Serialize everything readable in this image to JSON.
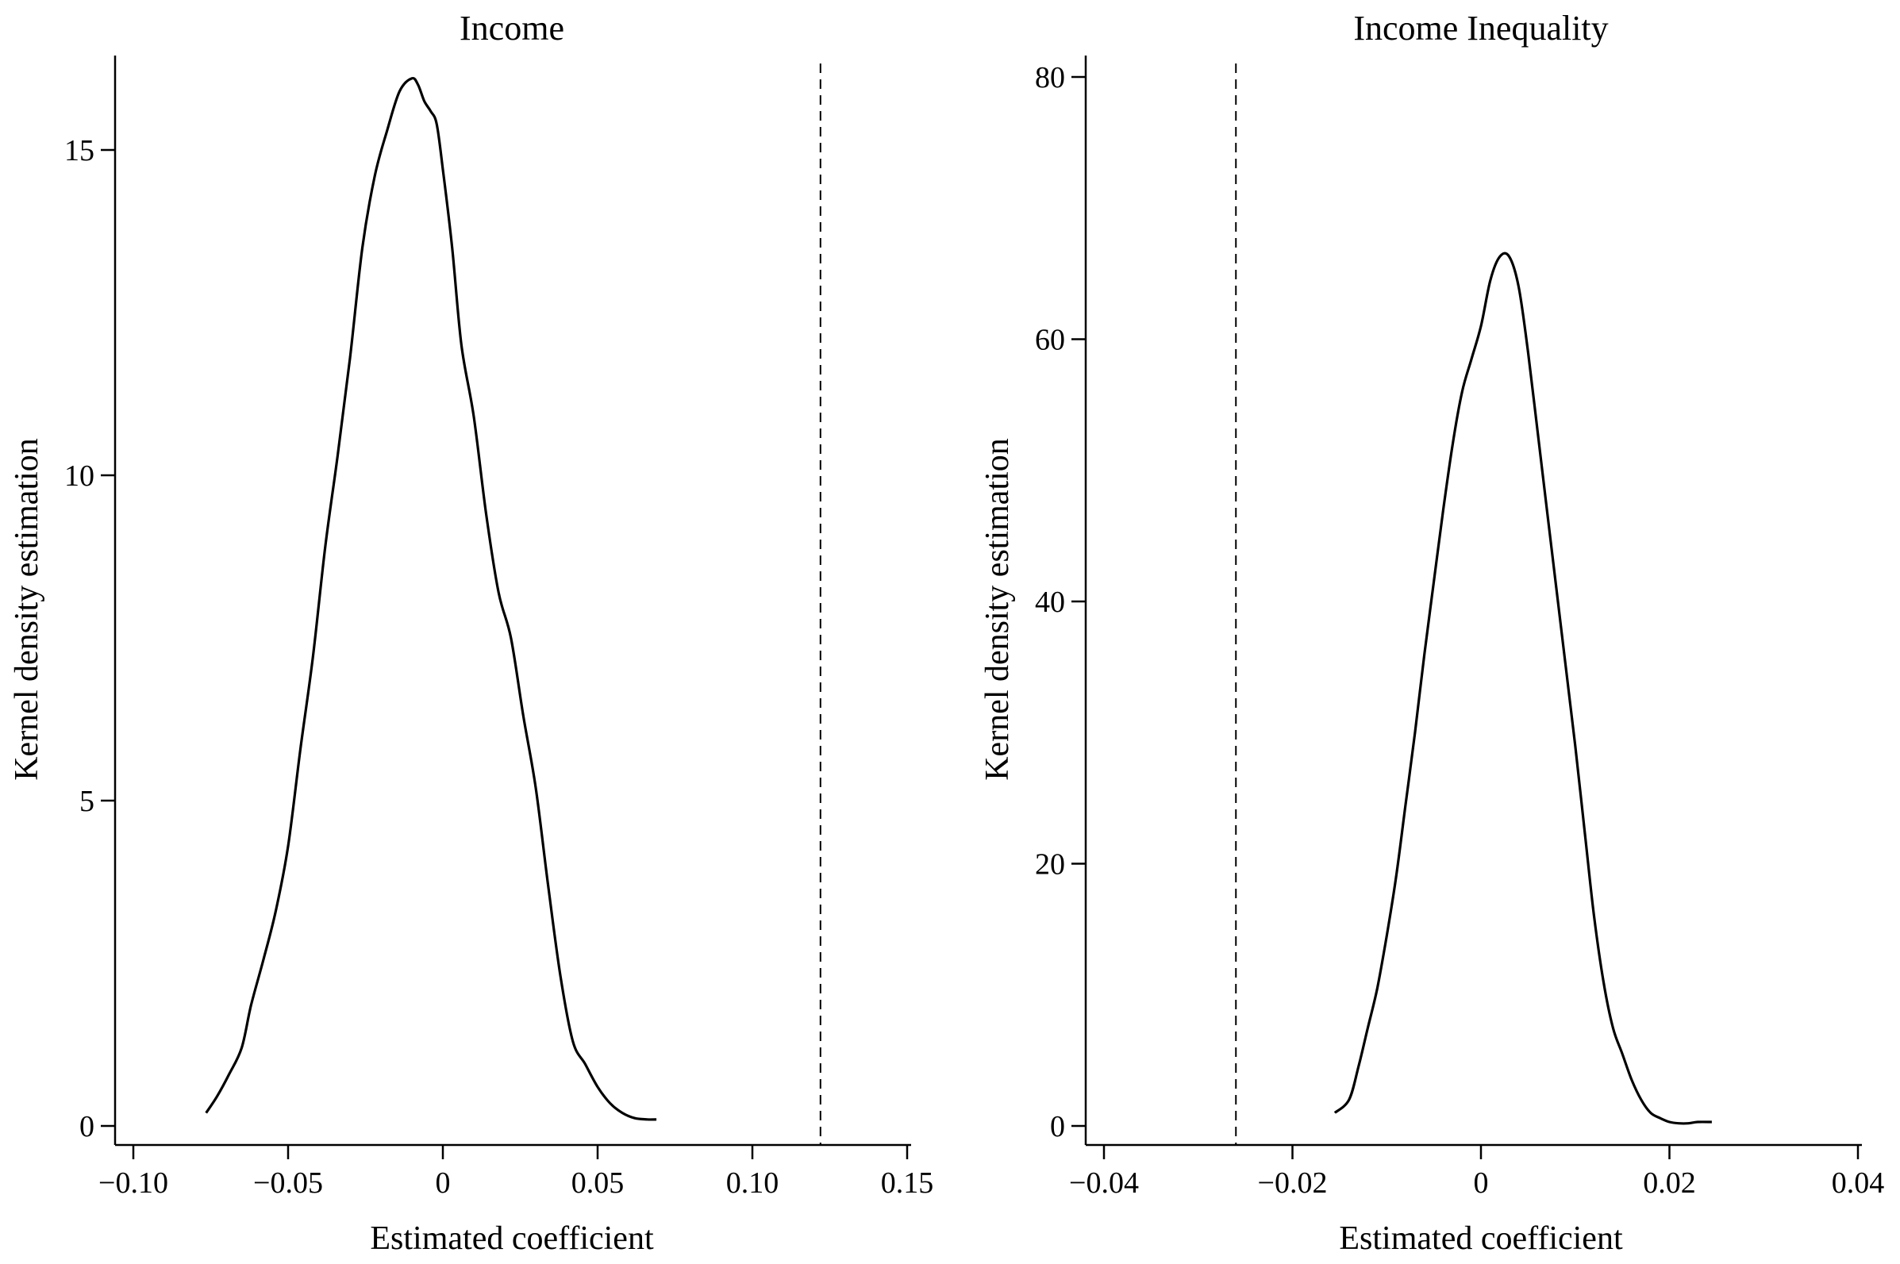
{
  "chart_data": [
    {
      "type": "line",
      "title": "Income",
      "xlabel": "Estimated coefficient",
      "ylabel": "Kernel density estimation",
      "xlim": [
        -0.1,
        0.15
      ],
      "ylim": [
        0,
        16
      ],
      "xticks": [
        {
          "value": -0.1,
          "label": "−0.10"
        },
        {
          "value": -0.05,
          "label": "−0.05"
        },
        {
          "value": 0,
          "label": "0"
        },
        {
          "value": 0.05,
          "label": "0.05"
        },
        {
          "value": 0.1,
          "label": "0.10"
        },
        {
          "value": 0.15,
          "label": "0.15"
        }
      ],
      "yticks": [
        {
          "value": 0,
          "label": "0"
        },
        {
          "value": 5,
          "label": "5"
        },
        {
          "value": 10,
          "label": "10"
        },
        {
          "value": 15,
          "label": "15"
        }
      ],
      "reference_line": {
        "x": 0.122,
        "style": "dashed"
      },
      "grid": false,
      "series": [
        {
          "x": [
            -0.0765,
            -0.073,
            -0.069,
            -0.065,
            -0.062,
            -0.058,
            -0.054,
            -0.05,
            -0.046,
            -0.042,
            -0.038,
            -0.034,
            -0.03,
            -0.026,
            -0.022,
            -0.018,
            -0.014,
            -0.01,
            -0.008,
            -0.006,
            -0.004,
            -0.002,
            0.0,
            0.003,
            0.006,
            0.01,
            0.014,
            0.018,
            0.022,
            0.026,
            0.03,
            0.034,
            0.038,
            0.042,
            0.046,
            0.05,
            0.054,
            0.058,
            0.062,
            0.066,
            0.069
          ],
          "y": [
            0.2,
            0.45,
            0.8,
            1.2,
            1.85,
            2.55,
            3.3,
            4.3,
            5.8,
            7.2,
            8.9,
            10.3,
            11.8,
            13.5,
            14.6,
            15.3,
            15.9,
            16.1,
            16.0,
            15.75,
            15.6,
            15.4,
            14.7,
            13.5,
            12.0,
            10.9,
            9.4,
            8.2,
            7.5,
            6.3,
            5.2,
            3.7,
            2.3,
            1.3,
            0.95,
            0.6,
            0.35,
            0.2,
            0.12,
            0.1,
            0.1
          ]
        }
      ]
    },
    {
      "type": "line",
      "title": "Income Inequality",
      "xlabel": "Estimated coefficient",
      "ylabel": "Kernel density estimation",
      "xlim": [
        -0.04,
        0.04
      ],
      "ylim": [
        0,
        80
      ],
      "xticks": [
        {
          "value": -0.04,
          "label": "−0.04"
        },
        {
          "value": -0.02,
          "label": "−0.02"
        },
        {
          "value": 0,
          "label": "0"
        },
        {
          "value": 0.02,
          "label": "0.02"
        },
        {
          "value": 0.04,
          "label": "0.04"
        }
      ],
      "yticks": [
        {
          "value": 0,
          "label": "0"
        },
        {
          "value": 20,
          "label": "20"
        },
        {
          "value": 40,
          "label": "40"
        },
        {
          "value": 60,
          "label": "60"
        },
        {
          "value": 80,
          "label": "80"
        }
      ],
      "reference_line": {
        "x": -0.026,
        "style": "dashed"
      },
      "grid": false,
      "series": [
        {
          "x": [
            -0.0155,
            -0.014,
            -0.013,
            -0.012,
            -0.011,
            -0.01,
            -0.009,
            -0.008,
            -0.007,
            -0.006,
            -0.005,
            -0.004,
            -0.003,
            -0.002,
            -0.001,
            0.0,
            0.001,
            0.002,
            0.003,
            0.004,
            0.005,
            0.006,
            0.007,
            0.008,
            0.009,
            0.01,
            0.011,
            0.012,
            0.013,
            0.014,
            0.015,
            0.016,
            0.017,
            0.018,
            0.019,
            0.02,
            0.021,
            0.022,
            0.023,
            0.0245
          ],
          "y": [
            1.0,
            2.0,
            4.5,
            7.5,
            10.5,
            14.5,
            19.0,
            24.5,
            30.0,
            36.0,
            41.5,
            47.0,
            52.0,
            56.0,
            58.5,
            61.0,
            64.5,
            66.3,
            66.3,
            64.0,
            59.0,
            53.0,
            47.0,
            41.0,
            35.0,
            29.0,
            22.5,
            16.0,
            11.0,
            7.5,
            5.5,
            3.5,
            2.0,
            1.0,
            0.6,
            0.3,
            0.2,
            0.2,
            0.3,
            0.3
          ]
        }
      ]
    }
  ]
}
